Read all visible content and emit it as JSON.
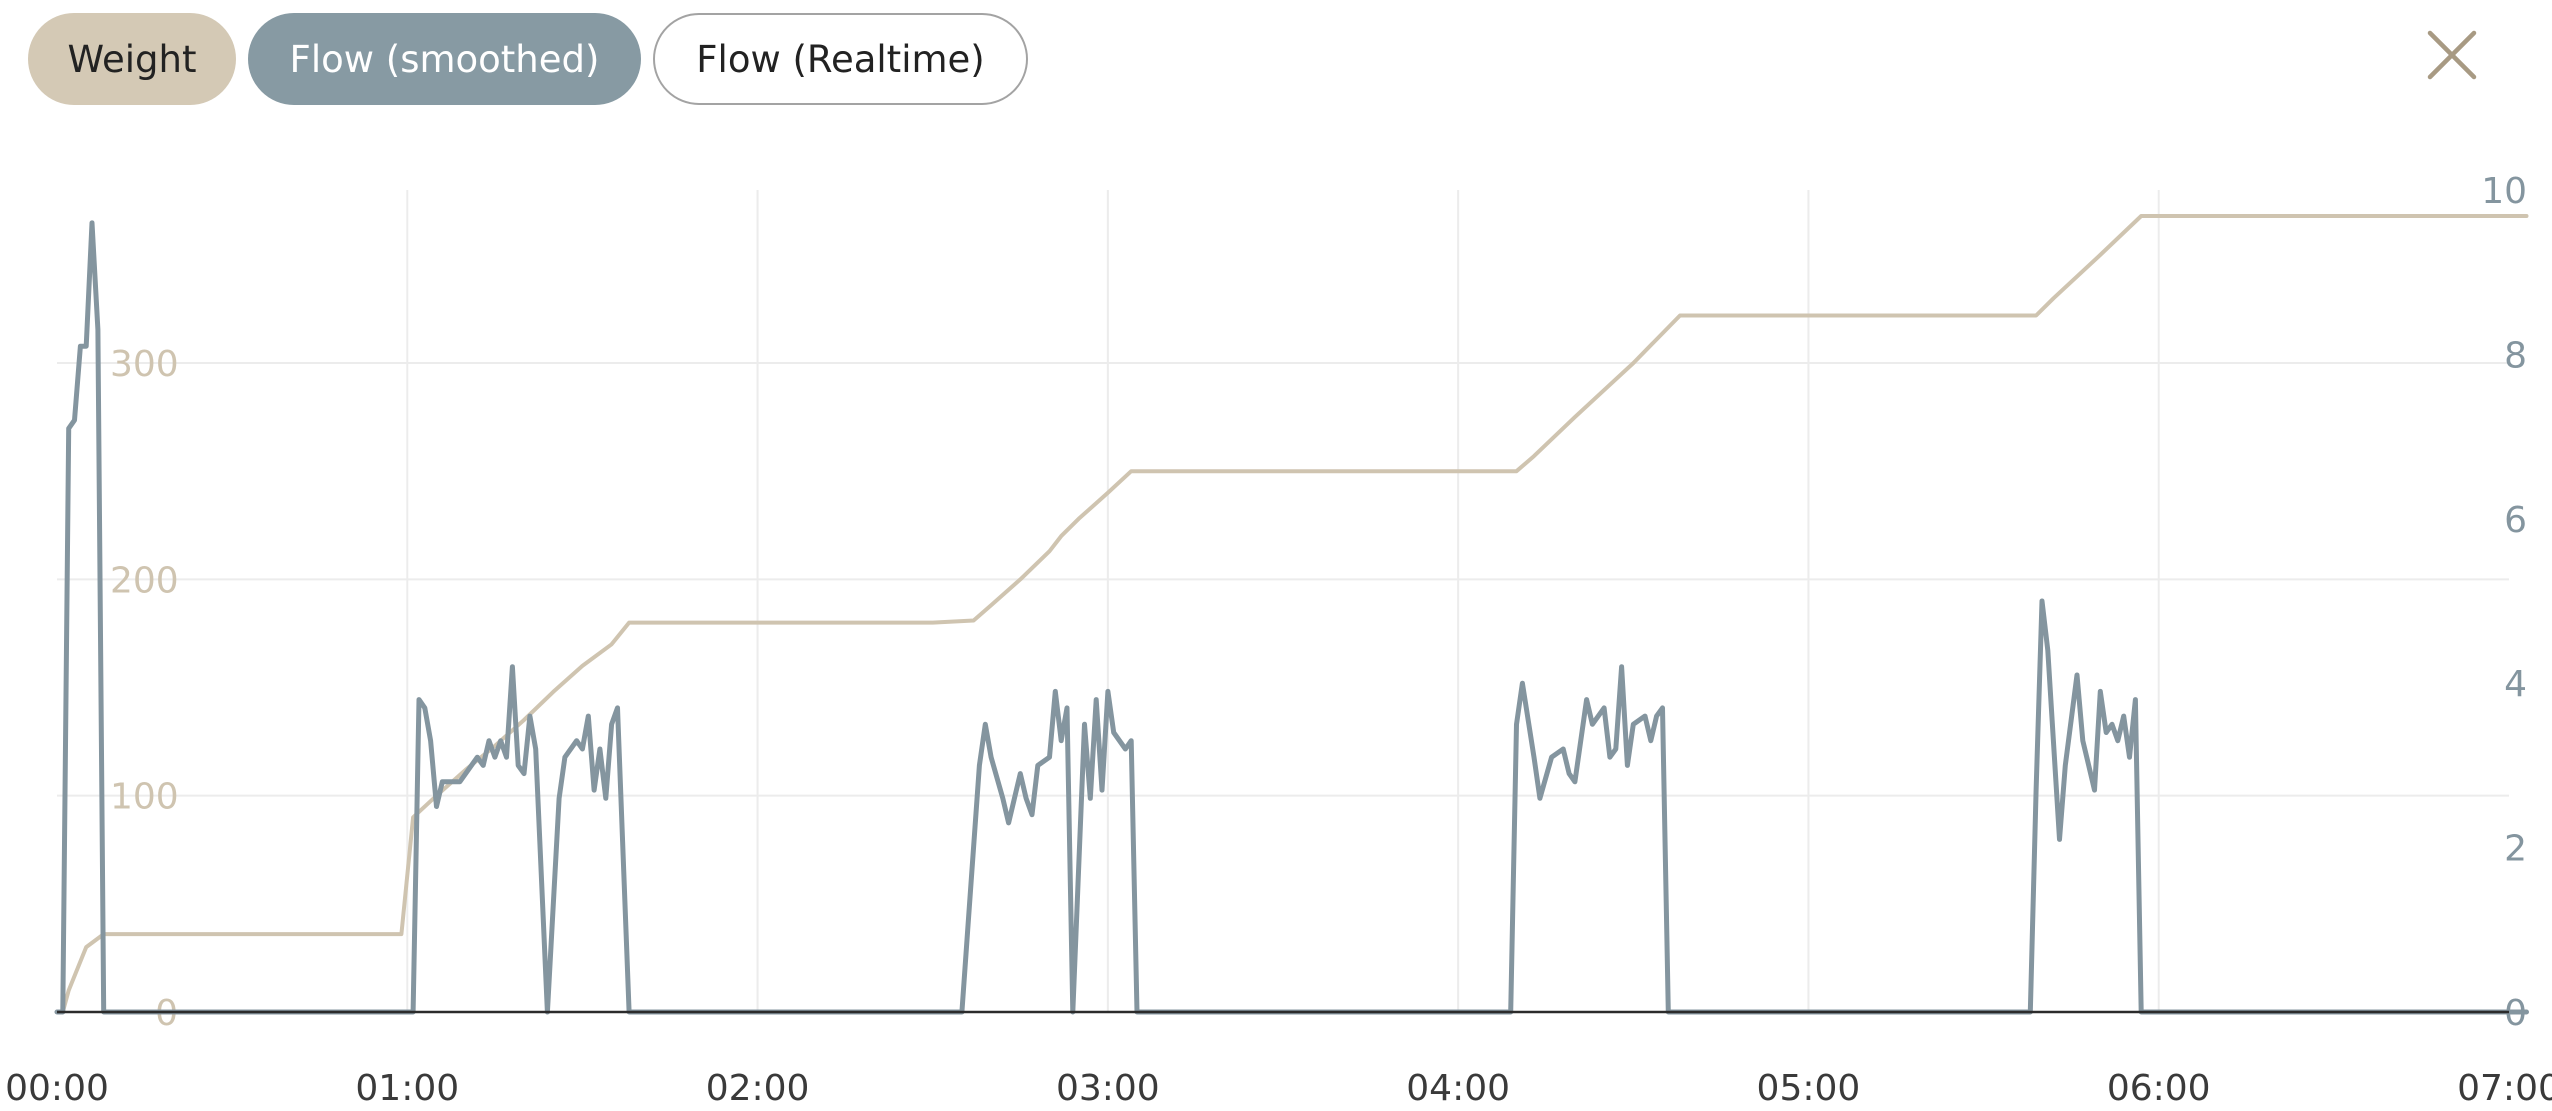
{
  "toolbar": {
    "weight_label": "Weight",
    "flow_smoothed_label": "Flow (smoothed)",
    "flow_realtime_label": "Flow (Realtime)"
  },
  "icons": {
    "close": "close-icon"
  },
  "colors": {
    "weight": "#cfc4b0",
    "weight_chip_bg": "#d4c9b5",
    "flow": "#84959f",
    "flow_chip_bg": "#879aa3",
    "grid": "#ececec",
    "baseline": "#2b2b2b",
    "time_ticks": "#3a3a3a",
    "close_icon": "#a89a83"
  },
  "chart_data": {
    "type": "line",
    "x_unit": "mm:ss",
    "xlim": [
      "00:00",
      "07:00"
    ],
    "x_ticks": [
      "00:00",
      "01:00",
      "02:00",
      "03:00",
      "04:00",
      "05:00",
      "06:00",
      "07:00"
    ],
    "y_left": {
      "ylim": [
        0,
        380
      ],
      "ticks": [
        "0",
        "100",
        "200",
        "300"
      ],
      "series": "Weight"
    },
    "y_right": {
      "ylim": [
        0,
        10
      ],
      "ticks": [
        "0",
        "2",
        "4",
        "6",
        "8",
        "10"
      ],
      "series": "Flow (smoothed)"
    },
    "grid": true,
    "series": [
      {
        "name": "Weight",
        "axis": "left",
        "points": [
          [
            "00:00",
            0
          ],
          [
            "00:01",
            0
          ],
          [
            "00:02",
            10
          ],
          [
            "00:05",
            30
          ],
          [
            "00:08",
            36
          ],
          [
            "00:30",
            36
          ],
          [
            "00:59",
            36
          ],
          [
            "01:01",
            90
          ],
          [
            "01:05",
            100
          ],
          [
            "01:10",
            112
          ],
          [
            "01:15",
            123
          ],
          [
            "01:20",
            135
          ],
          [
            "01:25",
            148
          ],
          [
            "01:30",
            160
          ],
          [
            "01:35",
            170
          ],
          [
            "01:38",
            180
          ],
          [
            "02:00",
            180
          ],
          [
            "02:30",
            180
          ],
          [
            "02:37",
            181
          ],
          [
            "02:40",
            188
          ],
          [
            "02:45",
            200
          ],
          [
            "02:50",
            213
          ],
          [
            "02:52",
            220
          ],
          [
            "02:55",
            228
          ],
          [
            "03:00",
            240
          ],
          [
            "03:04",
            250
          ],
          [
            "03:30",
            250
          ],
          [
            "04:00",
            250
          ],
          [
            "04:10",
            250
          ],
          [
            "04:13",
            257
          ],
          [
            "04:20",
            275
          ],
          [
            "04:30",
            300
          ],
          [
            "04:38",
            322
          ],
          [
            "05:00",
            322
          ],
          [
            "05:30",
            322
          ],
          [
            "05:39",
            322
          ],
          [
            "05:42",
            330
          ],
          [
            "05:50",
            350
          ],
          [
            "05:57",
            368
          ],
          [
            "06:30",
            368
          ],
          [
            "07:03",
            368
          ]
        ]
      },
      {
        "name": "Flow (smoothed)",
        "axis": "right",
        "points": [
          [
            "00:00",
            0
          ],
          [
            "00:01",
            0
          ],
          [
            "00:02",
            7.1
          ],
          [
            "00:03",
            7.2
          ],
          [
            "00:04",
            8.1
          ],
          [
            "00:05",
            8.1
          ],
          [
            "00:06",
            9.6
          ],
          [
            "00:07",
            8.3
          ],
          [
            "00:08",
            0
          ],
          [
            "00:30",
            0
          ],
          [
            "00:59",
            0
          ],
          [
            "01:01",
            0
          ],
          [
            "01:02",
            3.8
          ],
          [
            "01:03",
            3.7
          ],
          [
            "01:04",
            3.3
          ],
          [
            "01:05",
            2.5
          ],
          [
            "01:06",
            2.8
          ],
          [
            "01:09",
            2.8
          ],
          [
            "01:12",
            3.1
          ],
          [
            "01:13",
            3.0
          ],
          [
            "01:14",
            3.3
          ],
          [
            "01:15",
            3.1
          ],
          [
            "01:16",
            3.3
          ],
          [
            "01:17",
            3.1
          ],
          [
            "01:18",
            4.2
          ],
          [
            "01:19",
            3.0
          ],
          [
            "01:20",
            2.9
          ],
          [
            "01:21",
            3.6
          ],
          [
            "01:22",
            3.2
          ],
          [
            "01:24",
            0
          ],
          [
            "01:26",
            2.6
          ],
          [
            "01:27",
            3.1
          ],
          [
            "01:29",
            3.3
          ],
          [
            "01:30",
            3.2
          ],
          [
            "01:31",
            3.6
          ],
          [
            "01:32",
            2.7
          ],
          [
            "01:33",
            3.2
          ],
          [
            "01:34",
            2.6
          ],
          [
            "01:35",
            3.5
          ],
          [
            "01:36",
            3.7
          ],
          [
            "01:38",
            0
          ],
          [
            "02:00",
            0
          ],
          [
            "02:35",
            0
          ],
          [
            "02:36",
            1.0
          ],
          [
            "02:38",
            3.0
          ],
          [
            "02:39",
            3.5
          ],
          [
            "02:40",
            3.1
          ],
          [
            "02:42",
            2.6
          ],
          [
            "02:43",
            2.3
          ],
          [
            "02:45",
            2.9
          ],
          [
            "02:46",
            2.6
          ],
          [
            "02:47",
            2.4
          ],
          [
            "02:48",
            3.0
          ],
          [
            "02:50",
            3.1
          ],
          [
            "02:51",
            3.9
          ],
          [
            "02:52",
            3.3
          ],
          [
            "02:53",
            3.7
          ],
          [
            "02:54",
            0
          ],
          [
            "02:56",
            3.5
          ],
          [
            "02:57",
            2.6
          ],
          [
            "02:58",
            3.8
          ],
          [
            "02:59",
            2.7
          ],
          [
            "03:00",
            3.9
          ],
          [
            "03:01",
            3.4
          ],
          [
            "03:03",
            3.2
          ],
          [
            "03:04",
            3.3
          ],
          [
            "03:05",
            0
          ],
          [
            "03:30",
            0
          ],
          [
            "04:00",
            0
          ],
          [
            "04:09",
            0
          ],
          [
            "04:10",
            3.5
          ],
          [
            "04:11",
            4.0
          ],
          [
            "04:13",
            3.1
          ],
          [
            "04:14",
            2.6
          ],
          [
            "04:16",
            3.1
          ],
          [
            "04:18",
            3.2
          ],
          [
            "04:19",
            2.9
          ],
          [
            "04:20",
            2.8
          ],
          [
            "04:22",
            3.8
          ],
          [
            "04:23",
            3.5
          ],
          [
            "04:25",
            3.7
          ],
          [
            "04:26",
            3.1
          ],
          [
            "04:27",
            3.2
          ],
          [
            "04:28",
            4.2
          ],
          [
            "04:29",
            3.0
          ],
          [
            "04:30",
            3.5
          ],
          [
            "04:32",
            3.6
          ],
          [
            "04:33",
            3.3
          ],
          [
            "04:34",
            3.6
          ],
          [
            "04:35",
            3.7
          ],
          [
            "04:36",
            0
          ],
          [
            "05:00",
            0
          ],
          [
            "05:38",
            0
          ],
          [
            "05:39",
            2.7
          ],
          [
            "05:40",
            5.0
          ],
          [
            "05:41",
            4.4
          ],
          [
            "05:43",
            2.1
          ],
          [
            "05:44",
            3.0
          ],
          [
            "05:46",
            4.1
          ],
          [
            "05:47",
            3.3
          ],
          [
            "05:48",
            3.0
          ],
          [
            "05:49",
            2.7
          ],
          [
            "05:50",
            3.9
          ],
          [
            "05:51",
            3.4
          ],
          [
            "05:52",
            3.5
          ],
          [
            "05:53",
            3.3
          ],
          [
            "05:54",
            3.6
          ],
          [
            "05:55",
            3.1
          ],
          [
            "05:56",
            3.8
          ],
          [
            "05:57",
            0
          ],
          [
            "06:30",
            0
          ],
          [
            "07:03",
            0
          ]
        ]
      }
    ]
  }
}
